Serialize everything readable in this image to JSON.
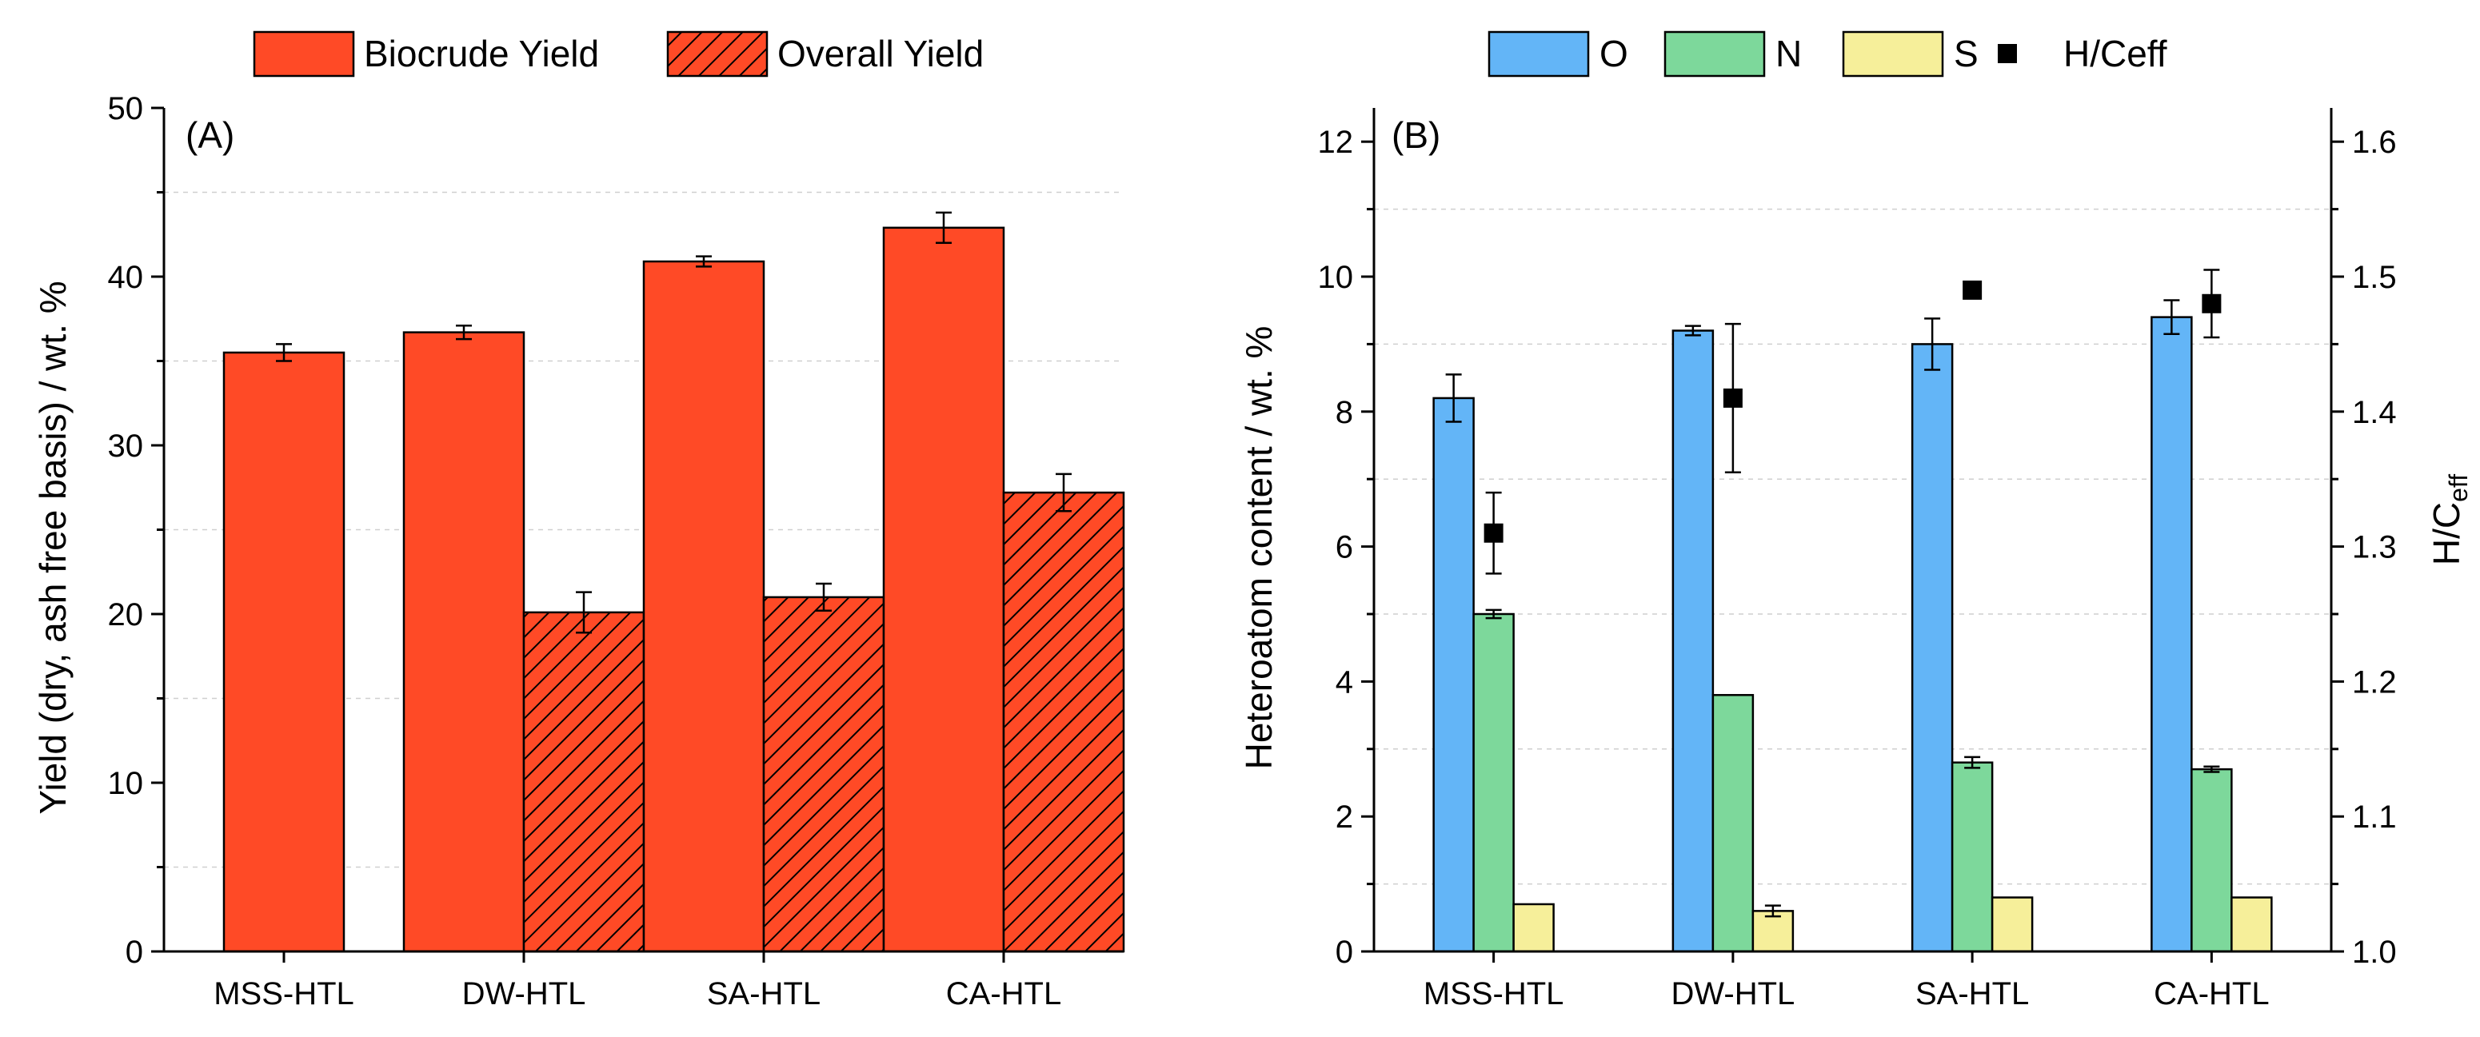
{
  "chart_data": [
    {
      "panel_label": "(A)",
      "type": "bar",
      "categories": [
        "MSS-HTL",
        "DW-HTL",
        "SA-HTL",
        "CA-HTL"
      ],
      "ylabel": "Yield (dry, ash free basis) / wt. %",
      "ylim": [
        0,
        50
      ],
      "yticks": [
        0,
        10,
        20,
        30,
        40,
        50
      ],
      "legend_position": "top",
      "series": [
        {
          "name": "Biocrude Yield",
          "color": "#ff4a26",
          "pattern": "solid",
          "values": [
            35.5,
            36.7,
            40.9,
            42.9
          ],
          "errors": [
            0.5,
            0.4,
            0.3,
            0.9
          ]
        },
        {
          "name": "Overall Yield",
          "color": "#ff4a26",
          "pattern": "hatched",
          "values": [
            null,
            20.1,
            21.0,
            27.2
          ],
          "errors": [
            null,
            1.2,
            0.8,
            1.1
          ]
        }
      ]
    },
    {
      "panel_label": "(B)",
      "type": "bar",
      "categories": [
        "MSS-HTL",
        "DW-HTL",
        "SA-HTL",
        "CA-HTL"
      ],
      "ylabel": "Heteroatom content / wt. %",
      "ylim": [
        0,
        12.5
      ],
      "yticks": [
        0,
        2,
        4,
        6,
        8,
        10,
        12
      ],
      "y2label_main": "H/C",
      "y2label_sub": "eff",
      "y2lim": [
        1.0,
        1.625
      ],
      "y2ticks": [
        "1.0",
        "1.1",
        "1.2",
        "1.3",
        "1.4",
        "1.5",
        "1.6"
      ],
      "legend_position": "top",
      "series": [
        {
          "name": "O",
          "color": "#63b5f7",
          "values": [
            8.2,
            9.2,
            9.0,
            9.4
          ],
          "errors": [
            0.35,
            0.07,
            0.38,
            0.25
          ]
        },
        {
          "name": "N",
          "color": "#7dd89b",
          "values": [
            5.0,
            3.8,
            2.8,
            2.7
          ],
          "errors": [
            0.06,
            null,
            0.08,
            0.04
          ]
        },
        {
          "name": "S",
          "color": "#f6ef9a",
          "values": [
            0.7,
            0.6,
            0.8,
            0.8
          ],
          "errors": [
            null,
            0.08,
            null,
            null
          ]
        }
      ],
      "secondary_series": {
        "name": "H/Ceff",
        "marker": "square",
        "color": "#000000",
        "values": [
          1.31,
          1.41,
          1.49,
          1.48
        ],
        "errors": [
          0.03,
          0.055,
          null,
          0.025
        ]
      }
    }
  ]
}
